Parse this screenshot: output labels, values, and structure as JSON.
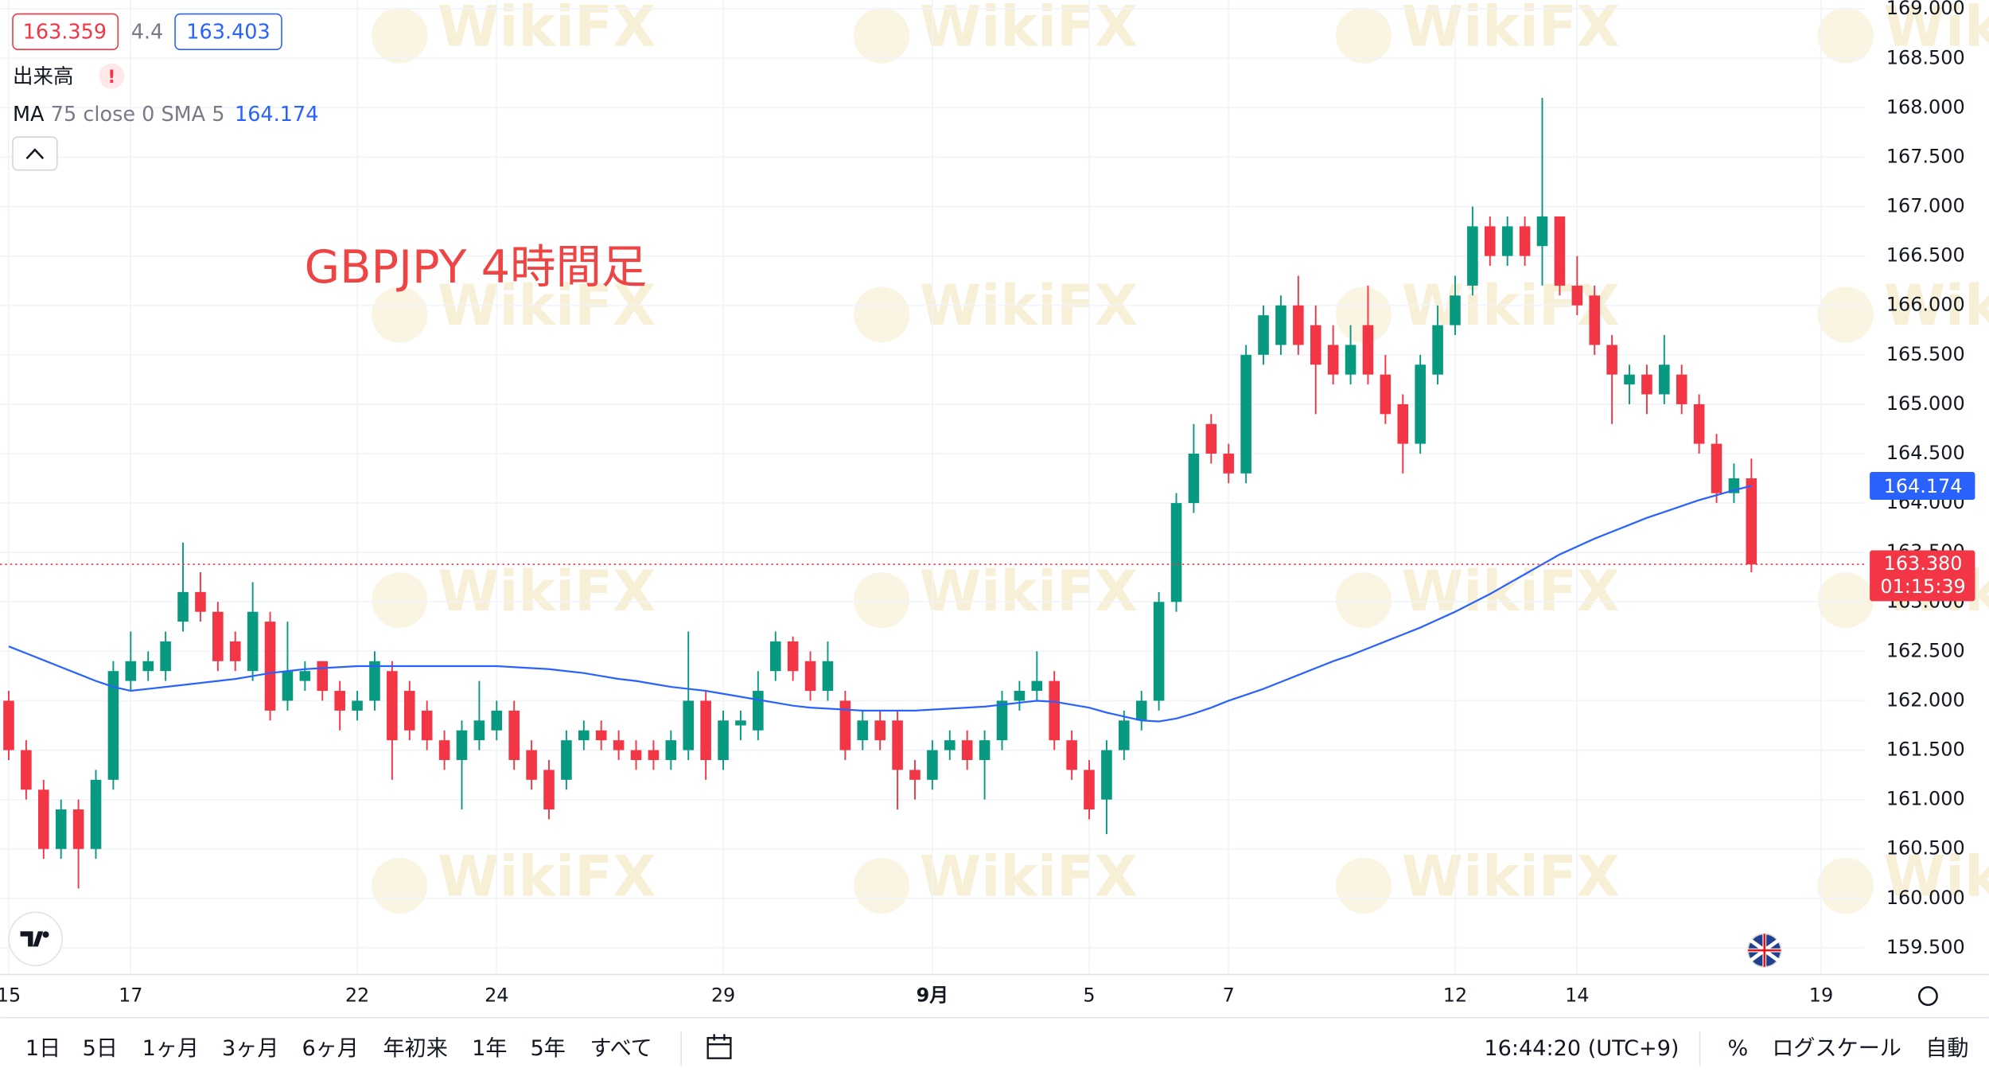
{
  "chart_data": {
    "type": "candlestick",
    "annotation": "GBPJPY 4時間足",
    "categories": [
      "15",
      null,
      null,
      null,
      null,
      null,
      null,
      "17",
      null,
      null,
      null,
      null,
      null,
      null,
      null,
      null,
      null,
      null,
      null,
      null,
      "22",
      null,
      null,
      null,
      null,
      null,
      null,
      null,
      "24",
      null,
      null,
      null,
      null,
      null,
      null,
      null,
      null,
      null,
      null,
      null,
      null,
      "29",
      null,
      null,
      null,
      null,
      null,
      null,
      null,
      null,
      null,
      null,
      null,
      "9月",
      null,
      null,
      null,
      null,
      null,
      null,
      null,
      null,
      "5",
      null,
      null,
      null,
      null,
      null,
      null,
      null,
      "7",
      null,
      null,
      null,
      null,
      null,
      null,
      null,
      null,
      null,
      null,
      null,
      null,
      "12",
      null,
      null,
      null,
      null,
      null,
      null,
      "14",
      null,
      null,
      null,
      null,
      null,
      null,
      null,
      null,
      null,
      null,
      null,
      null,
      null,
      "19",
      null,
      null
    ],
    "open": [
      162.0,
      161.5,
      161.1,
      160.5,
      160.9,
      160.5,
      161.2,
      162.2,
      162.3,
      162.3,
      162.8,
      163.1,
      162.9,
      162.6,
      162.3,
      162.8,
      162.0,
      162.2,
      162.4,
      162.1,
      161.9,
      162.0,
      162.3,
      162.1,
      161.9,
      161.6,
      161.4,
      161.6,
      161.7,
      161.9,
      161.5,
      161.3,
      161.2,
      161.6,
      161.7,
      161.6,
      161.5,
      161.5,
      161.4,
      161.5,
      162.0,
      161.4,
      161.75,
      161.7,
      162.3,
      162.6,
      162.4,
      162.1,
      162.0,
      161.6,
      161.8,
      161.8,
      161.3,
      161.2,
      161.5,
      161.6,
      161.4,
      161.6,
      162.0,
      162.1,
      162.2,
      161.6,
      161.3,
      161.0,
      161.5,
      161.8,
      162.0,
      163.0,
      164.0,
      164.8,
      164.5,
      164.3,
      165.5,
      165.6,
      166.0,
      165.8,
      165.6,
      165.3,
      165.8,
      165.3,
      165.0,
      164.6,
      165.3,
      165.8,
      166.2,
      166.8,
      166.5,
      166.8,
      166.6,
      166.9,
      166.2,
      166.1,
      165.6,
      165.2,
      165.3,
      165.1,
      165.3,
      165.0,
      164.6,
      164.1,
      164.25,
      null,
      null,
      null,
      null,
      null,
      null
    ],
    "high": [
      162.1,
      161.6,
      161.2,
      161.0,
      161.0,
      161.3,
      162.4,
      162.7,
      162.5,
      162.7,
      163.6,
      163.3,
      163.0,
      162.7,
      163.2,
      162.9,
      162.8,
      162.4,
      162.4,
      162.2,
      162.1,
      162.5,
      162.4,
      162.2,
      162.0,
      161.7,
      161.8,
      162.2,
      162.0,
      162.0,
      161.6,
      161.4,
      161.7,
      161.8,
      161.8,
      161.7,
      161.6,
      161.6,
      161.7,
      162.7,
      162.1,
      161.9,
      161.9,
      162.3,
      162.7,
      162.65,
      162.5,
      162.6,
      162.1,
      161.9,
      161.9,
      161.9,
      161.4,
      161.6,
      161.7,
      161.7,
      161.7,
      162.1,
      162.2,
      162.5,
      162.3,
      161.7,
      161.4,
      161.6,
      161.9,
      162.1,
      163.1,
      164.1,
      164.8,
      164.9,
      164.6,
      165.6,
      166.0,
      166.1,
      166.3,
      166.0,
      165.8,
      165.8,
      166.2,
      165.5,
      165.1,
      165.5,
      166.0,
      166.3,
      167.0,
      166.9,
      166.9,
      166.9,
      168.1,
      166.9,
      166.5,
      166.2,
      165.7,
      165.4,
      165.4,
      165.7,
      165.4,
      165.1,
      164.7,
      164.4,
      164.45,
      null,
      null,
      null,
      null,
      null,
      null
    ],
    "low": [
      161.4,
      161.0,
      160.4,
      160.4,
      160.1,
      160.4,
      161.1,
      162.1,
      162.2,
      162.2,
      162.7,
      162.8,
      162.3,
      162.3,
      162.2,
      161.8,
      161.9,
      162.1,
      162.0,
      161.7,
      161.8,
      161.9,
      161.2,
      161.6,
      161.5,
      161.3,
      160.9,
      161.5,
      161.6,
      161.3,
      161.1,
      160.8,
      161.1,
      161.5,
      161.5,
      161.4,
      161.3,
      161.3,
      161.3,
      161.4,
      161.2,
      161.3,
      161.6,
      161.6,
      162.2,
      162.2,
      162.0,
      162.0,
      161.4,
      161.5,
      161.5,
      160.9,
      161.0,
      161.1,
      161.4,
      161.3,
      161.0,
      161.5,
      161.9,
      162.0,
      161.5,
      161.2,
      160.8,
      160.65,
      161.4,
      161.7,
      161.9,
      162.9,
      163.9,
      164.4,
      164.2,
      164.2,
      165.4,
      165.5,
      165.5,
      164.9,
      165.2,
      165.2,
      165.2,
      164.8,
      164.3,
      164.5,
      165.2,
      165.7,
      166.1,
      166.4,
      166.4,
      166.4,
      166.2,
      166.1,
      165.9,
      165.5,
      164.8,
      165.0,
      164.9,
      165.0,
      164.9,
      164.5,
      164.0,
      164.0,
      163.3,
      null,
      null,
      null,
      null,
      null,
      null
    ],
    "close": [
      161.5,
      161.1,
      160.5,
      160.9,
      160.5,
      161.2,
      162.3,
      162.4,
      162.4,
      162.6,
      163.1,
      162.9,
      162.4,
      162.4,
      162.9,
      161.9,
      162.3,
      162.3,
      162.1,
      161.9,
      162.0,
      162.4,
      161.6,
      161.7,
      161.6,
      161.4,
      161.7,
      161.8,
      161.9,
      161.4,
      161.2,
      160.9,
      161.6,
      161.7,
      161.6,
      161.5,
      161.4,
      161.4,
      161.6,
      162.0,
      161.4,
      161.8,
      161.8,
      162.1,
      162.6,
      162.3,
      162.1,
      162.4,
      161.5,
      161.8,
      161.6,
      161.3,
      161.2,
      161.5,
      161.6,
      161.4,
      161.6,
      162.0,
      162.1,
      162.2,
      161.6,
      161.3,
      160.9,
      161.5,
      161.8,
      162.0,
      163.0,
      164.0,
      164.5,
      164.5,
      164.3,
      165.5,
      165.9,
      166.0,
      165.6,
      165.4,
      165.3,
      165.6,
      165.3,
      164.9,
      164.6,
      165.4,
      165.8,
      166.1,
      166.8,
      166.5,
      166.8,
      166.5,
      166.9,
      166.2,
      166.0,
      165.6,
      165.3,
      165.3,
      165.1,
      165.4,
      165.0,
      164.6,
      164.1,
      164.25,
      163.38,
      null,
      null,
      null,
      null,
      null,
      null
    ],
    "up_color": "#089981",
    "down_color": "#f23645",
    "ma": {
      "color": "#2962ff",
      "values": [
        162.55,
        162.48,
        162.41,
        162.34,
        162.27,
        162.2,
        162.14,
        162.1,
        162.12,
        162.14,
        162.16,
        162.18,
        162.2,
        162.22,
        162.25,
        162.28,
        162.3,
        162.32,
        162.33,
        162.34,
        162.35,
        162.35,
        162.35,
        162.35,
        162.35,
        162.35,
        162.35,
        162.35,
        162.35,
        162.34,
        162.33,
        162.32,
        162.3,
        162.28,
        162.25,
        162.22,
        162.2,
        162.17,
        162.14,
        162.12,
        162.1,
        162.07,
        162.04,
        162.01,
        161.98,
        161.95,
        161.93,
        161.92,
        161.91,
        161.9,
        161.9,
        161.9,
        161.9,
        161.91,
        161.92,
        161.93,
        161.94,
        161.96,
        161.98,
        162.0,
        161.99,
        161.96,
        161.93,
        161.88,
        161.84,
        161.8,
        161.79,
        161.82,
        161.87,
        161.93,
        162.0,
        162.06,
        162.12,
        162.19,
        162.26,
        162.33,
        162.4,
        162.46,
        162.53,
        162.6,
        162.67,
        162.74,
        162.82,
        162.9,
        162.99,
        163.08,
        163.18,
        163.28,
        163.38,
        163.48,
        163.56,
        163.64,
        163.71,
        163.78,
        163.85,
        163.91,
        163.97,
        164.03,
        164.08,
        164.13,
        164.174,
        null,
        null,
        null,
        null,
        null,
        null
      ]
    },
    "last_price": {
      "value": 163.38,
      "label": "163.380",
      "countdown": "01:15:39",
      "color": "#f23645"
    },
    "ylim": [
      159.23,
      169.09
    ],
    "yticks": [
      {
        "value": 159.5,
        "label": "159.500"
      },
      {
        "value": 160,
        "label": "160.000"
      },
      {
        "value": 160.5,
        "label": "160.500"
      },
      {
        "value": 161,
        "label": "161.000"
      },
      {
        "value": 161.5,
        "label": "161.500"
      },
      {
        "value": 162,
        "label": "162.000"
      },
      {
        "value": 162.5,
        "label": "162.500"
      },
      {
        "value": 163,
        "label": "163.000"
      },
      {
        "value": 163.5,
        "label": "163.500"
      },
      {
        "value": 164,
        "label": "164.000"
      },
      {
        "value": 164.5,
        "label": "164.500"
      },
      {
        "value": 165,
        "label": "165.000"
      },
      {
        "value": 165.5,
        "label": "165.500"
      },
      {
        "value": 166,
        "label": "166.000"
      },
      {
        "value": 166.5,
        "label": "166.500"
      },
      {
        "value": 167,
        "label": "167.000"
      },
      {
        "value": 167.5,
        "label": "167.500"
      },
      {
        "value": 168,
        "label": "168.000"
      },
      {
        "value": 168.5,
        "label": "168.500"
      },
      {
        "value": 169,
        "label": "169.000"
      }
    ],
    "grid": true
  },
  "header": {
    "bid": 163.359,
    "spread": 4.4,
    "ask": 163.403,
    "volume": "出来高",
    "alert": "!",
    "indicator": {
      "name": "MA",
      "params": "75 close 0 SMA 5"
    }
  },
  "watermark": "WikiFX",
  "toolbar": {
    "ranges": [
      "1日",
      "5日",
      "1ヶ月",
      "3ヶ月",
      "6ヶ月",
      "年初来",
      "1年",
      "5年",
      "すべて"
    ],
    "time": "16:44:20 (UTC+9)",
    "percent": "%",
    "log_scale": "ログスケール",
    "auto": "自動"
  }
}
